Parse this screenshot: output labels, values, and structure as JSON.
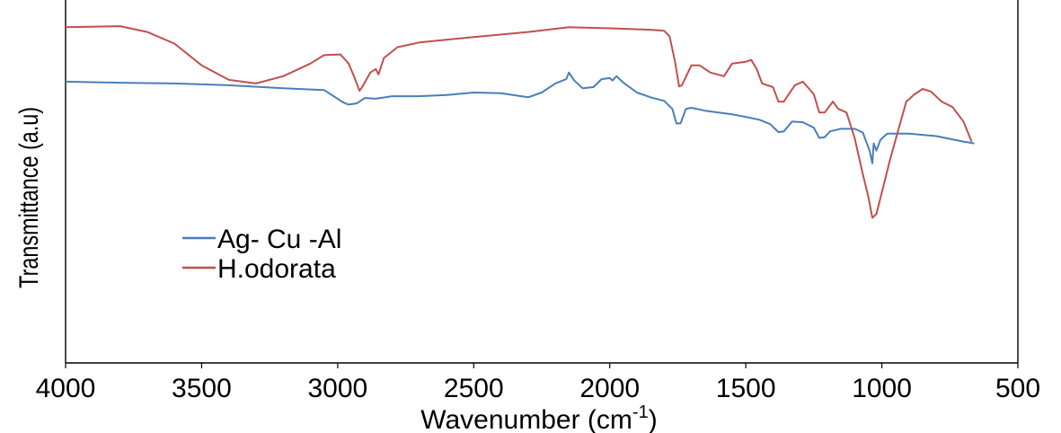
{
  "chart_data": {
    "type": "line",
    "title": "",
    "xlabel": "Wavenumber (cm",
    "xlabel_sup": "-1",
    "xlabel_end": ")",
    "ylabel": "Transmittance (a.u)",
    "xlim": [
      4000,
      500
    ],
    "ylim": [
      0,
      1
    ],
    "x_reversed": true,
    "y_tick_labels": false,
    "grid": false,
    "legend_position": "center-left",
    "ticks": [
      4000,
      3500,
      3000,
      2500,
      2000,
      1500,
      1000,
      500
    ],
    "tick_labels": [
      "4000",
      "3500",
      "3000",
      "2500",
      "2000",
      "1500",
      "1000",
      "500"
    ],
    "series": [
      {
        "name": "Ag- Cu -Al",
        "color": "#4a7ebb",
        "points": [
          [
            4000,
            0.775
          ],
          [
            3800,
            0.772
          ],
          [
            3600,
            0.77
          ],
          [
            3400,
            0.765
          ],
          [
            3200,
            0.757
          ],
          [
            3050,
            0.752
          ],
          [
            2980,
            0.718
          ],
          [
            2960,
            0.712
          ],
          [
            2930,
            0.715
          ],
          [
            2900,
            0.73
          ],
          [
            2860,
            0.728
          ],
          [
            2800,
            0.735
          ],
          [
            2700,
            0.735
          ],
          [
            2600,
            0.738
          ],
          [
            2500,
            0.745
          ],
          [
            2400,
            0.743
          ],
          [
            2300,
            0.732
          ],
          [
            2250,
            0.745
          ],
          [
            2200,
            0.77
          ],
          [
            2160,
            0.782
          ],
          [
            2150,
            0.8
          ],
          [
            2130,
            0.778
          ],
          [
            2100,
            0.757
          ],
          [
            2060,
            0.76
          ],
          [
            2030,
            0.782
          ],
          [
            2000,
            0.785
          ],
          [
            1990,
            0.778
          ],
          [
            1975,
            0.79
          ],
          [
            1950,
            0.772
          ],
          [
            1900,
            0.745
          ],
          [
            1850,
            0.732
          ],
          [
            1800,
            0.722
          ],
          [
            1770,
            0.7
          ],
          [
            1755,
            0.66
          ],
          [
            1740,
            0.66
          ],
          [
            1720,
            0.7
          ],
          [
            1700,
            0.703
          ],
          [
            1650,
            0.695
          ],
          [
            1550,
            0.685
          ],
          [
            1500,
            0.678
          ],
          [
            1450,
            0.67
          ],
          [
            1410,
            0.658
          ],
          [
            1380,
            0.636
          ],
          [
            1360,
            0.638
          ],
          [
            1330,
            0.665
          ],
          [
            1290,
            0.663
          ],
          [
            1250,
            0.648
          ],
          [
            1230,
            0.62
          ],
          [
            1210,
            0.622
          ],
          [
            1190,
            0.638
          ],
          [
            1150,
            0.645
          ],
          [
            1100,
            0.645
          ],
          [
            1070,
            0.635
          ],
          [
            1045,
            0.585
          ],
          [
            1035,
            0.55
          ],
          [
            1030,
            0.605
          ],
          [
            1020,
            0.585
          ],
          [
            1005,
            0.615
          ],
          [
            980,
            0.632
          ],
          [
            900,
            0.632
          ],
          [
            800,
            0.625
          ],
          [
            700,
            0.61
          ],
          [
            660,
            0.605
          ]
        ]
      },
      {
        "name": "H.odorata",
        "color": "#c0504d",
        "points": [
          [
            4000,
            0.925
          ],
          [
            3800,
            0.928
          ],
          [
            3700,
            0.912
          ],
          [
            3600,
            0.88
          ],
          [
            3500,
            0.82
          ],
          [
            3400,
            0.78
          ],
          [
            3300,
            0.77
          ],
          [
            3200,
            0.79
          ],
          [
            3100,
            0.825
          ],
          [
            3050,
            0.848
          ],
          [
            2990,
            0.85
          ],
          [
            2960,
            0.825
          ],
          [
            2940,
            0.79
          ],
          [
            2920,
            0.75
          ],
          [
            2910,
            0.76
          ],
          [
            2880,
            0.8
          ],
          [
            2860,
            0.81
          ],
          [
            2850,
            0.795
          ],
          [
            2830,
            0.84
          ],
          [
            2780,
            0.87
          ],
          [
            2700,
            0.883
          ],
          [
            2500,
            0.898
          ],
          [
            2300,
            0.912
          ],
          [
            2150,
            0.925
          ],
          [
            2000,
            0.922
          ],
          [
            1850,
            0.918
          ],
          [
            1800,
            0.915
          ],
          [
            1780,
            0.9
          ],
          [
            1760,
            0.83
          ],
          [
            1745,
            0.762
          ],
          [
            1735,
            0.765
          ],
          [
            1700,
            0.82
          ],
          [
            1670,
            0.82
          ],
          [
            1630,
            0.8
          ],
          [
            1580,
            0.79
          ],
          [
            1550,
            0.825
          ],
          [
            1500,
            0.83
          ],
          [
            1480,
            0.835
          ],
          [
            1460,
            0.81
          ],
          [
            1440,
            0.77
          ],
          [
            1400,
            0.76
          ],
          [
            1380,
            0.72
          ],
          [
            1360,
            0.72
          ],
          [
            1320,
            0.765
          ],
          [
            1290,
            0.775
          ],
          [
            1250,
            0.74
          ],
          [
            1230,
            0.69
          ],
          [
            1210,
            0.69
          ],
          [
            1180,
            0.72
          ],
          [
            1160,
            0.7
          ],
          [
            1130,
            0.69
          ],
          [
            1100,
            0.62
          ],
          [
            1070,
            0.52
          ],
          [
            1050,
            0.46
          ],
          [
            1035,
            0.4
          ],
          [
            1020,
            0.41
          ],
          [
            1000,
            0.47
          ],
          [
            970,
            0.56
          ],
          [
            940,
            0.64
          ],
          [
            910,
            0.72
          ],
          [
            880,
            0.74
          ],
          [
            850,
            0.755
          ],
          [
            820,
            0.748
          ],
          [
            780,
            0.72
          ],
          [
            740,
            0.705
          ],
          [
            700,
            0.665
          ],
          [
            670,
            0.61
          ]
        ]
      }
    ]
  }
}
